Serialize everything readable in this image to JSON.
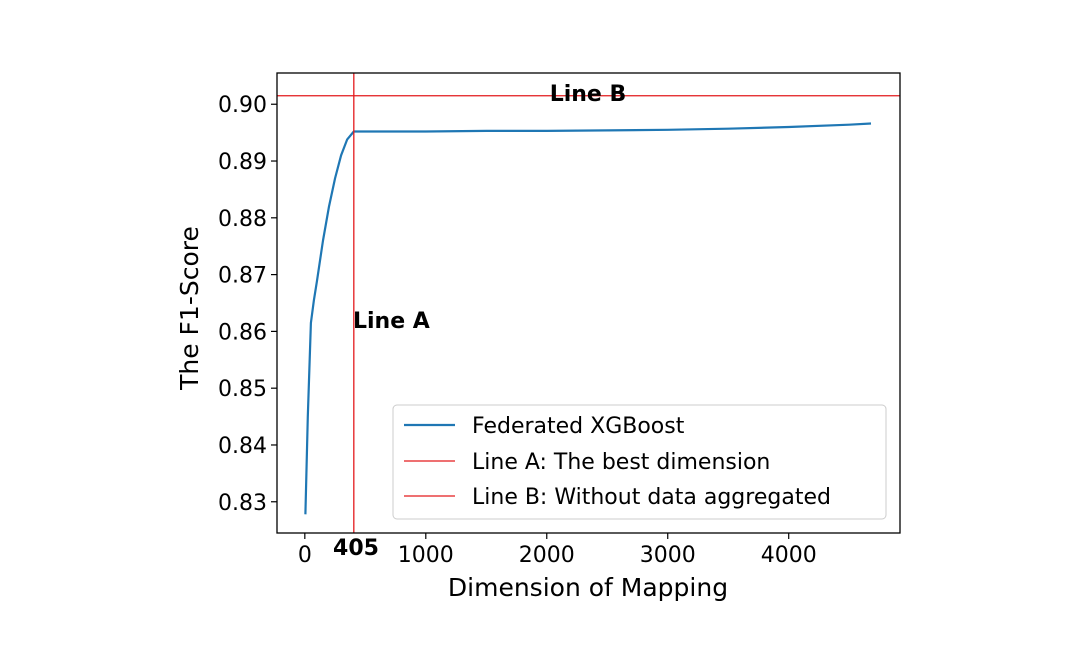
{
  "chart_data": {
    "type": "line",
    "title": "",
    "xlabel": "Dimension of Mapping",
    "ylabel": "The F1-Score",
    "xlim": [
      -230,
      4920
    ],
    "ylim": [
      0.8245,
      0.9055
    ],
    "xticks": [
      0,
      1000,
      2000,
      3000,
      4000
    ],
    "yticks": [
      0.83,
      0.84,
      0.85,
      0.86,
      0.87,
      0.88,
      0.89,
      0.9
    ],
    "ytick_labels": [
      "0.83",
      "0.84",
      "0.85",
      "0.86",
      "0.87",
      "0.88",
      "0.89",
      "0.90"
    ],
    "grid": false,
    "legend_position": "lower-right",
    "series": [
      {
        "name": "Federated XGBoost",
        "color": "#1f77b4",
        "x": [
          5,
          25,
          50,
          75,
          100,
          150,
          200,
          250,
          300,
          350,
          405,
          600,
          1000,
          1500,
          2000,
          2500,
          3000,
          3500,
          4000,
          4500,
          4680
        ],
        "y": [
          0.8278,
          0.845,
          0.8615,
          0.8655,
          0.8688,
          0.876,
          0.882,
          0.887,
          0.891,
          0.8938,
          0.8952,
          0.8952,
          0.8952,
          0.8953,
          0.8953,
          0.8954,
          0.8955,
          0.8957,
          0.896,
          0.8964,
          0.8966
        ]
      }
    ],
    "reference_lines": [
      {
        "name": "Line A: The best dimension",
        "orientation": "vertical",
        "x": 405,
        "color": "#e31a1c",
        "label": "Line A"
      },
      {
        "name": "Line B: Without data aggregated",
        "orientation": "horizontal",
        "y": 0.9015,
        "color": "#e31a1c",
        "label": "Line B"
      }
    ],
    "annotations": [
      {
        "text": "405",
        "x": 405
      }
    ]
  }
}
